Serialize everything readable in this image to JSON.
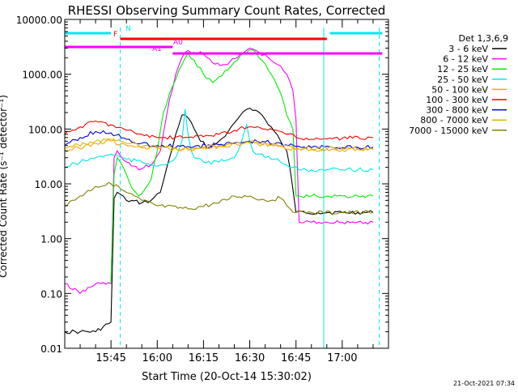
{
  "chart_data": {
    "type": "line",
    "title": "RHESSI Observing Summary Count Rates, Corrected",
    "xlabel": "Start Time (20-Oct-14 15:30:02)",
    "ylabel": "Corrected Count Rate (s⁻¹ detector⁻¹)",
    "yscale": "log",
    "ylim": [
      0.01,
      10000
    ],
    "xlim_minutes": [
      0,
      105
    ],
    "x_tick_labels": [
      "15:45",
      "16:00",
      "16:15",
      "16:30",
      "16:45",
      "17:00"
    ],
    "x_tick_minutes": [
      15,
      30,
      45,
      60,
      75,
      90
    ],
    "y_tick_labels": [
      "0.01",
      "0.10",
      "1.00",
      "10.00",
      "100.00",
      "1000.00",
      "10000.00"
    ],
    "y_tick_values": [
      0.01,
      0.1,
      1,
      10,
      100,
      1000,
      10000
    ],
    "grid": false,
    "legend_title": "Det 1,3,6,9",
    "legend_position": "right",
    "timestamp": "21-Oct-2021 07:34",
    "series": [
      {
        "name": "3 - 6 keV",
        "color": "#000000",
        "x": [
          0,
          5,
          10,
          15,
          16,
          17,
          20,
          25,
          28,
          31,
          34,
          36,
          38,
          40,
          42,
          44,
          47,
          50,
          53,
          56,
          58,
          60,
          62,
          64,
          66,
          68,
          70,
          72,
          73,
          74,
          75,
          78,
          82,
          86,
          90,
          95,
          100
        ],
        "y": [
          0.02,
          0.02,
          0.02,
          0.03,
          5.5,
          7,
          5,
          4.5,
          5,
          7,
          30,
          80,
          180,
          160,
          100,
          60,
          45,
          60,
          90,
          150,
          210,
          240,
          220,
          180,
          120,
          90,
          60,
          40,
          20,
          8,
          3,
          3,
          3,
          3,
          3,
          3,
          3
        ]
      },
      {
        "name": "6 - 12 keV",
        "color": "#ff00ff",
        "x": [
          0,
          5,
          10,
          15,
          16,
          17,
          20,
          24,
          28,
          31,
          34,
          36,
          38,
          40,
          42,
          45,
          48,
          52,
          56,
          60,
          63,
          66,
          69,
          72,
          74,
          75,
          76,
          80,
          85,
          90,
          95,
          100
        ],
        "y": [
          0.15,
          0.1,
          0.15,
          0.15,
          30,
          40,
          25,
          18,
          22,
          40,
          350,
          1000,
          2000,
          2700,
          2500,
          2300,
          1600,
          1500,
          2000,
          3000,
          2500,
          2000,
          1500,
          1000,
          500,
          150,
          2,
          2,
          2,
          2,
          2,
          2
        ]
      },
      {
        "name": "12 - 25 keV",
        "color": "#00ee00",
        "x": [
          15,
          16,
          17,
          18,
          20,
          22,
          24,
          26,
          28,
          30,
          32,
          34,
          36,
          38,
          40,
          42,
          45,
          48,
          50,
          53,
          56,
          58,
          60,
          62,
          64,
          66,
          68,
          70,
          72,
          74,
          75,
          76,
          80,
          85,
          90,
          95,
          100
        ],
        "y": [
          0.15,
          15,
          30,
          25,
          15,
          8,
          6,
          8,
          12,
          40,
          200,
          450,
          800,
          1500,
          2400,
          1800,
          1000,
          700,
          900,
          1200,
          1800,
          2400,
          2800,
          2500,
          1800,
          1200,
          800,
          450,
          180,
          100,
          6,
          6,
          6,
          6,
          6,
          6,
          6
        ]
      },
      {
        "name": "25 - 50 keV",
        "color": "#00e8e8",
        "x": [
          0,
          5,
          10,
          15,
          20,
          25,
          28,
          31,
          34,
          36,
          38,
          39,
          40,
          41,
          42,
          45,
          50,
          55,
          57,
          59,
          60,
          61,
          63,
          65,
          68,
          70,
          72,
          74,
          76,
          80,
          85,
          90,
          95,
          100
        ],
        "y": [
          20,
          25,
          30,
          35,
          28,
          25,
          22,
          22,
          25,
          30,
          60,
          230,
          80,
          40,
          30,
          25,
          25,
          30,
          50,
          120,
          60,
          40,
          35,
          30,
          28,
          25,
          22,
          20,
          18,
          18,
          18,
          18,
          18,
          18
        ]
      },
      {
        "name": "50 - 100 keV",
        "color": "#ffa500",
        "x": [
          0,
          10,
          15,
          20,
          25,
          30,
          40,
          50,
          60,
          70,
          75,
          80,
          90,
          100
        ],
        "y": [
          40,
          55,
          60,
          50,
          45,
          45,
          42,
          48,
          55,
          48,
          42,
          42,
          42,
          42
        ]
      },
      {
        "name": "100 - 300 keV",
        "color": "#ff0000",
        "x": [
          0,
          5,
          10,
          15,
          20,
          25,
          30,
          40,
          50,
          55,
          60,
          65,
          70,
          75,
          80,
          90,
          100
        ],
        "y": [
          80,
          110,
          140,
          120,
          95,
          80,
          70,
          70,
          80,
          95,
          110,
          100,
          90,
          70,
          65,
          68,
          70
        ]
      },
      {
        "name": "300 - 800 keV",
        "color": "#0000dd",
        "x": [
          0,
          5,
          10,
          15,
          20,
          25,
          30,
          40,
          50,
          60,
          65,
          70,
          75,
          80,
          90,
          100
        ],
        "y": [
          50,
          70,
          90,
          85,
          65,
          55,
          50,
          48,
          52,
          60,
          58,
          55,
          48,
          46,
          46,
          47
        ]
      },
      {
        "name": "800 - 7000 keV",
        "color": "#d8b800",
        "x": [
          0,
          10,
          15,
          20,
          25,
          30,
          40,
          50,
          60,
          70,
          75,
          80,
          90,
          100
        ],
        "y": [
          45,
          60,
          65,
          55,
          48,
          46,
          44,
          50,
          58,
          50,
          44,
          44,
          44,
          44
        ]
      },
      {
        "name": "7000 - 15000 keV",
        "color": "#808000",
        "x": [
          0,
          5,
          10,
          15,
          20,
          25,
          30,
          40,
          50,
          55,
          60,
          65,
          70,
          72,
          75,
          80,
          90,
          100
        ],
        "y": [
          4,
          6,
          9,
          10,
          7,
          5,
          4,
          3.5,
          4.5,
          6,
          6,
          5,
          5.5,
          4,
          3,
          3,
          3,
          3
        ]
      }
    ],
    "markers": {
      "N": {
        "color": "#00e8e8",
        "label": "N",
        "ranges": [
          [
            0,
            15
          ],
          [
            86,
            103
          ]
        ]
      },
      "F": {
        "color": "#ff0000",
        "label": "F",
        "ranges": [
          [
            18,
            85
          ]
        ]
      },
      "A0": {
        "color": "#ff00ff",
        "label": "A0",
        "ranges": [
          [
            0,
            35
          ]
        ]
      },
      "A1": {
        "color": "#ff00ff",
        "label": "A1",
        "ranges": [
          [
            35,
            103
          ]
        ]
      }
    },
    "vertical_lines": [
      {
        "x": 18,
        "color": "#00e8e8",
        "style": "dashed"
      },
      {
        "x": 84,
        "color": "#00e8e8",
        "style": "solid"
      },
      {
        "x": 102,
        "color": "#00e8e8",
        "style": "dashed"
      }
    ]
  }
}
